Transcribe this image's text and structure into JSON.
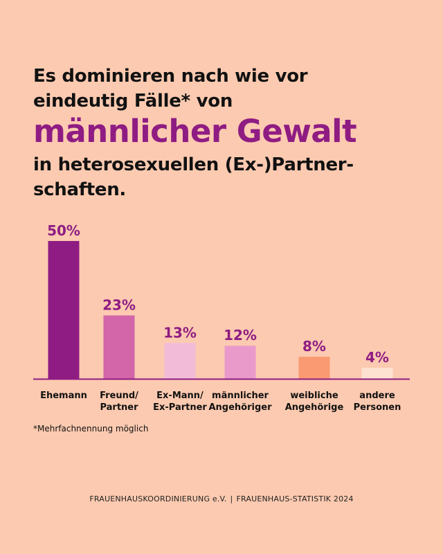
{
  "headline": {
    "line1": "Es dominieren nach wie vor",
    "line2": "eindeutig Fälle* von",
    "accent": "männlicher Gewalt",
    "line3": "in heterosexuellen (Ex-)Partner-",
    "line4": "schaften."
  },
  "chart_data": {
    "type": "bar",
    "categories": [
      [
        "Ehemann"
      ],
      [
        "Freund/",
        "Partner"
      ],
      [
        "Ex-Mann/",
        "Ex-Partner"
      ],
      [
        "männlicher",
        "Angehöriger"
      ],
      [
        "weibliche",
        "Angehörige"
      ],
      [
        "andere",
        "Personen"
      ]
    ],
    "values": [
      50,
      23,
      13,
      12,
      8,
      4
    ],
    "value_labels": [
      "50%",
      "23%",
      "13%",
      "12%",
      "8%",
      "4%"
    ],
    "bar_colors": [
      "#8f1c83",
      "#d266a8",
      "#f2bcd9",
      "#e99acb",
      "#f99a72",
      "#fde2d2"
    ],
    "value_label_color": "#8f1c83",
    "axis_color": "#8f1c83",
    "unit": "%",
    "grid": false,
    "ylim": [
      0,
      50
    ]
  },
  "footnote": "*Mehrfachnennung möglich",
  "footer": {
    "left": "FRAUENHAUSKOORDINIERUNG e.V.",
    "separator": "|",
    "right": "FRAUENHAUS-STATISTIK 2024"
  }
}
